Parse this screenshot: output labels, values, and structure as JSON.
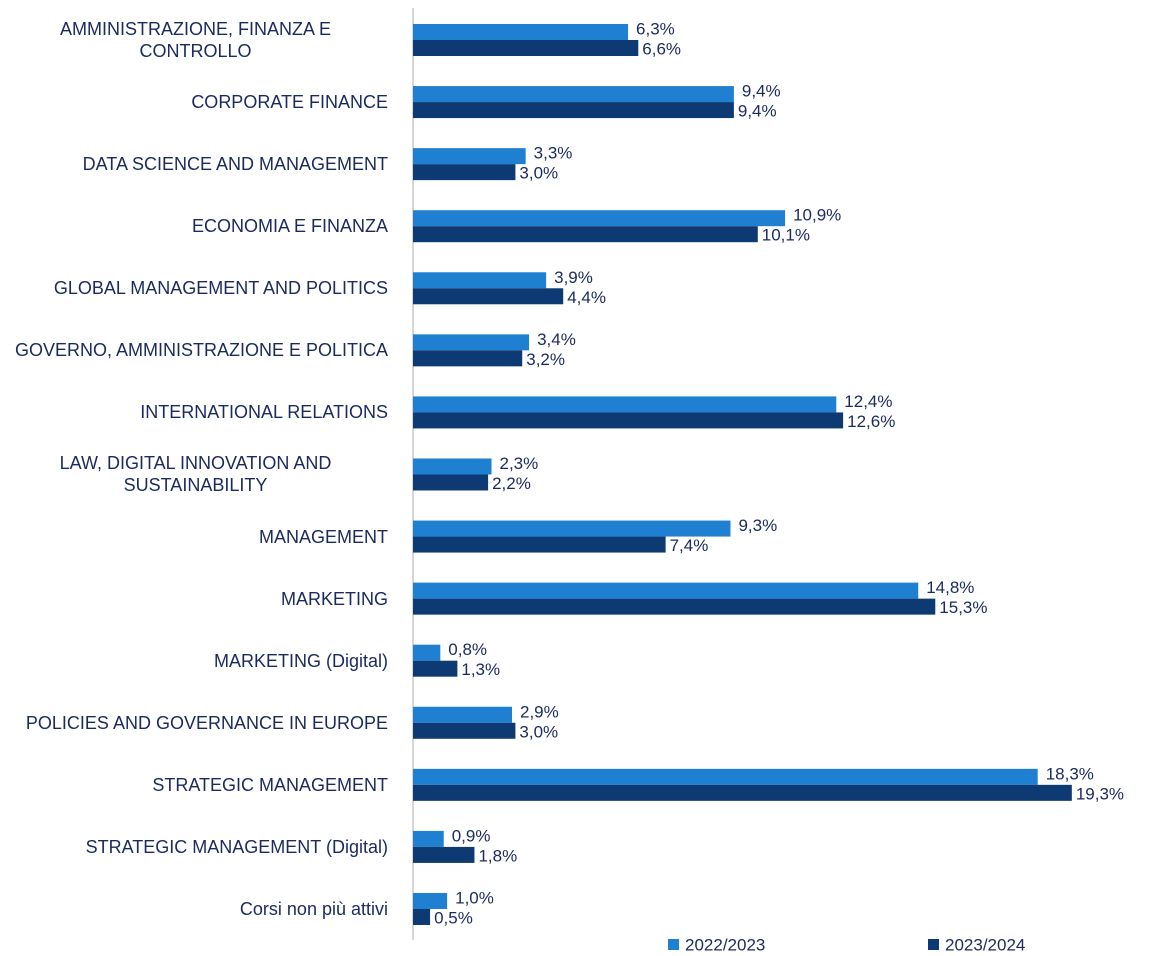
{
  "chart_data": {
    "type": "bar",
    "orientation": "horizontal",
    "categories": [
      "AMMINISTRAZIONE, FINANZA E CONTROLLO",
      "CORPORATE FINANCE",
      "DATA SCIENCE AND MANAGEMENT",
      "ECONOMIA E FINANZA",
      "GLOBAL MANAGEMENT AND POLITICS",
      "GOVERNO, AMMINISTRAZIONE E POLITICA",
      "INTERNATIONAL RELATIONS",
      "LAW, DIGITAL INNOVATION AND SUSTAINABILITY",
      "MANAGEMENT",
      "MARKETING",
      "MARKETING (Digital)",
      "POLICIES AND GOVERNANCE IN EUROPE",
      "STRATEGIC MANAGEMENT",
      "STRATEGIC MANAGEMENT (Digital)",
      "Corsi non più attivi"
    ],
    "series": [
      {
        "name": "2022/2023",
        "color": "#1f7fd1",
        "values": [
          6.3,
          9.4,
          3.3,
          10.9,
          3.9,
          3.4,
          12.4,
          2.3,
          9.3,
          14.8,
          0.8,
          2.9,
          18.3,
          0.9,
          1.0
        ],
        "value_labels": [
          "6,3%",
          "9,4%",
          "3,3%",
          "10,9%",
          "3,9%",
          "3,4%",
          "12,4%",
          "2,3%",
          "9,3%",
          "14,8%",
          "0,8%",
          "2,9%",
          "18,3%",
          "0,9%",
          "1,0%"
        ]
      },
      {
        "name": "2023/2024",
        "color": "#0d3a72",
        "values": [
          6.6,
          9.4,
          3.0,
          10.1,
          4.4,
          3.2,
          12.6,
          2.2,
          7.4,
          15.3,
          1.3,
          3.0,
          19.3,
          1.8,
          0.5
        ],
        "value_labels": [
          "6,6%",
          "9,4%",
          "3,0%",
          "10,1%",
          "4,4%",
          "3,2%",
          "12,6%",
          "2,2%",
          "7,4%",
          "15,3%",
          "1,3%",
          "3,0%",
          "19,3%",
          "1,8%",
          "0,5%"
        ]
      }
    ],
    "xlim": [
      0,
      22
    ],
    "legend": "bottom"
  }
}
